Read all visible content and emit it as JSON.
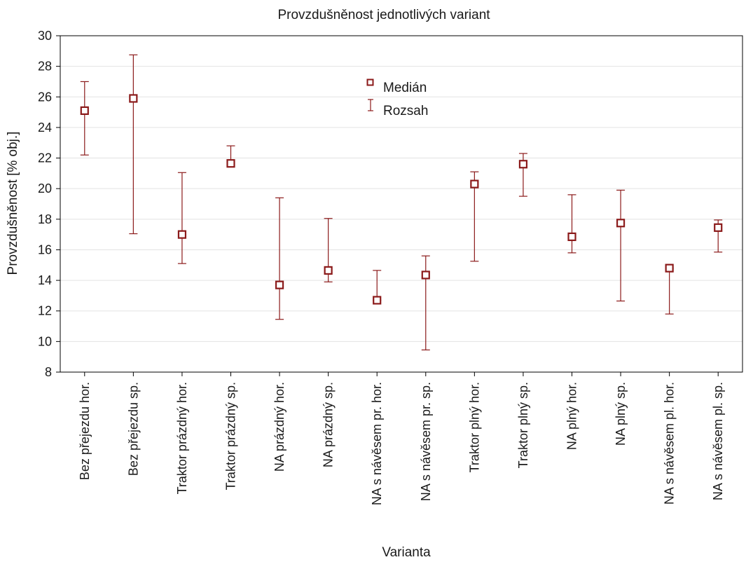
{
  "chart_data": {
    "type": "scatter",
    "title": "Provzdušněnost jednotlivých variant",
    "xlabel": "Varianta",
    "ylabel": "Provzdušněnost [% obj.]",
    "ylim": [
      8,
      30
    ],
    "yticks": [
      8,
      10,
      12,
      14,
      16,
      18,
      20,
      22,
      24,
      26,
      28,
      30
    ],
    "grid": true,
    "color": "#8b1a1a",
    "legend": [
      {
        "key": "median",
        "label": "Medián"
      },
      {
        "key": "range",
        "label": "Rozsah"
      }
    ],
    "categories": [
      "Bez přejezdu hor.",
      "Bez přejezdu sp.",
      "Traktor prázdný hor.",
      "Traktor prázdný sp.",
      "NA prázdný hor.",
      "NA prázdný sp.",
      "NA s návěsem pr. hor.",
      "NA s návěsem pr. sp.",
      "Traktor plný hor.",
      "Traktor plný sp.",
      "NA plný hor.",
      "NA plný sp.",
      "NA s návěsem pl. hor.",
      "NA s návěsem pl. sp."
    ],
    "median": [
      25.1,
      25.9,
      17.0,
      21.65,
      13.7,
      14.65,
      12.7,
      14.35,
      20.3,
      21.6,
      16.85,
      17.75,
      14.8,
      17.45
    ],
    "min": [
      22.2,
      17.05,
      15.1,
      21.6,
      11.45,
      13.9,
      12.7,
      9.45,
      15.25,
      19.5,
      15.8,
      12.65,
      11.8,
      15.85
    ],
    "max": [
      27.0,
      28.75,
      21.05,
      22.8,
      19.4,
      18.05,
      14.65,
      15.6,
      21.1,
      22.3,
      19.6,
      19.9,
      14.8,
      17.95
    ]
  }
}
